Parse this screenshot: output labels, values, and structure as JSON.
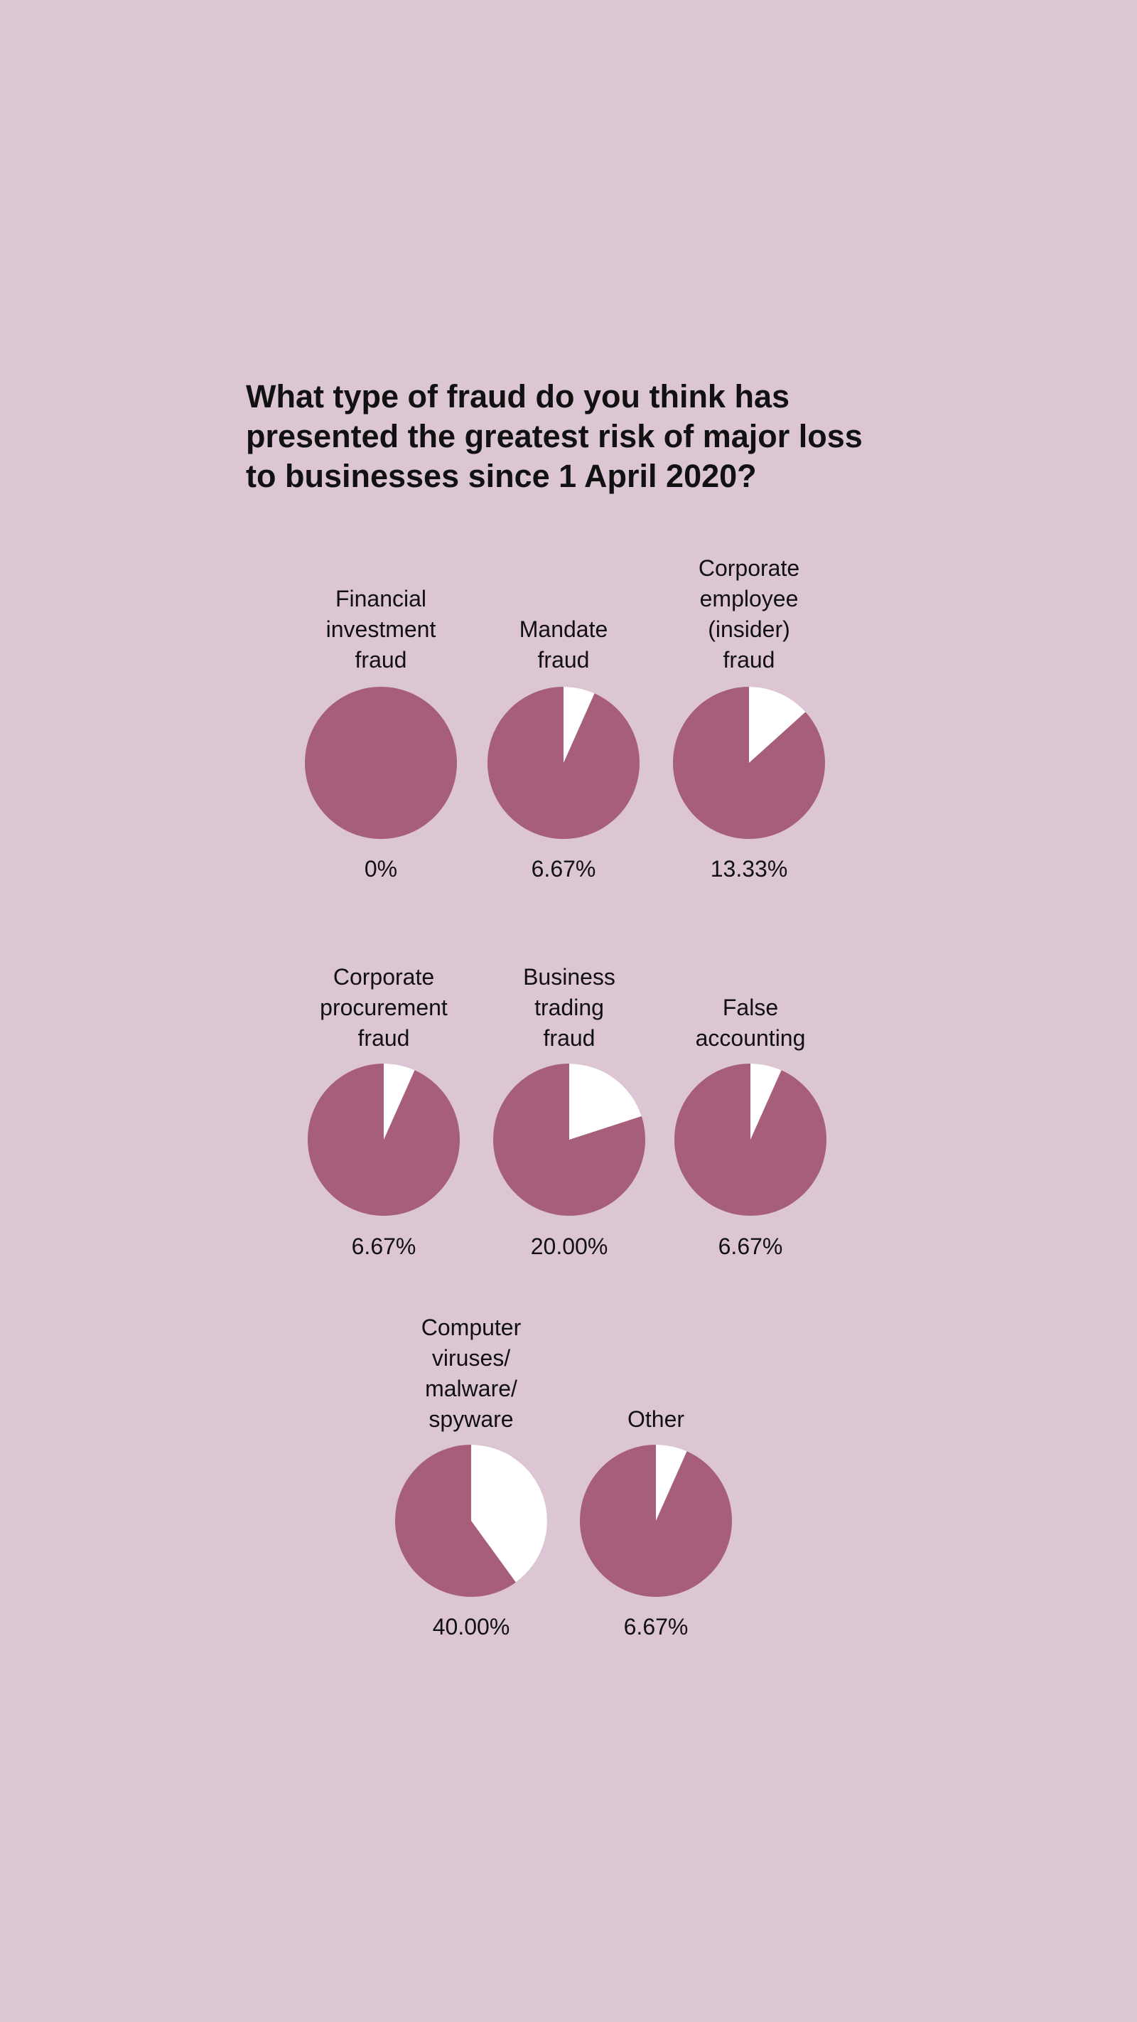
{
  "title": "What type of fraud do you think has presented the greatest risk of major loss to businesses since 1 April 2020?",
  "colors": {
    "background": "#dcc6d4",
    "slice_rest": "#a65e7a",
    "slice_highlight": "#ffffff",
    "text": "#111111"
  },
  "chart_data": {
    "type": "pie",
    "title": "What type of fraud do you think has presented the greatest risk of major loss to businesses since 1 April 2020?",
    "unit": "%",
    "charts": [
      {
        "label": "Financial\ninvestment\nfraud",
        "value": 0,
        "value_label": "0%"
      },
      {
        "label": "Mandate\nfraud",
        "value": 6.67,
        "value_label": "6.67%"
      },
      {
        "label": "Corporate\nemployee\n(insider)\nfraud",
        "value": 13.33,
        "value_label": "13.33%"
      },
      {
        "label": "Corporate\nprocurement\nfraud",
        "value": 6.67,
        "value_label": "6.67%"
      },
      {
        "label": "Business\ntrading\nfraud",
        "value": 20.0,
        "value_label": "20.00%"
      },
      {
        "label": "False\naccounting",
        "value": 6.67,
        "value_label": "6.67%"
      },
      {
        "label": "Computer\nviruses/\nmalware/\nspyware",
        "value": 40.0,
        "value_label": "40.00%"
      },
      {
        "label": "Other",
        "value": 6.67,
        "value_label": "6.67%"
      }
    ]
  }
}
